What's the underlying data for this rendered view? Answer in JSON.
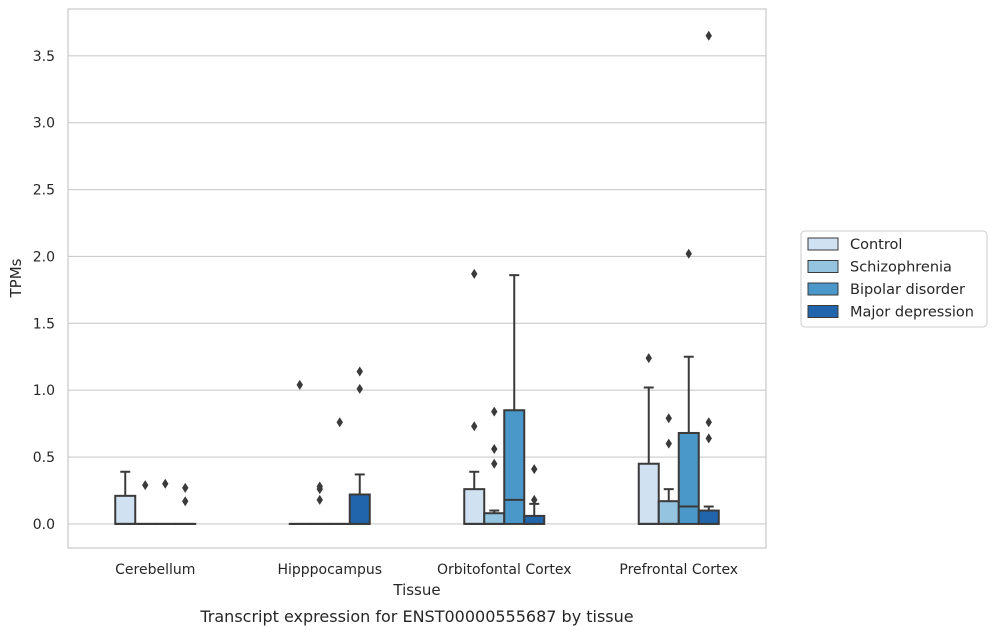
{
  "chart_data": {
    "type": "box",
    "xlabel": "Tissue",
    "ylabel": "TPMs",
    "caption": "Transcript expression for ENST00000555687 by tissue",
    "categories": [
      "Cerebellum",
      "Hipppocampus",
      "Orbitofontal Cortex",
      "Prefrontal Cortex"
    ],
    "ylim": [
      -0.18,
      3.85
    ],
    "yticks": [
      "0.0",
      "0.5",
      "1.0",
      "1.5",
      "2.0",
      "2.5",
      "3.0",
      "3.5"
    ],
    "grid": "horizontal",
    "legend_position": "right",
    "series": [
      {
        "name": "Control",
        "color": "#d0e1f2",
        "boxes": [
          {
            "q1": 0.0,
            "median": 0.0,
            "q3": 0.21,
            "whislo": 0.0,
            "whishi": 0.39,
            "fliers": []
          },
          {
            "q1": 0.0,
            "median": 0.0,
            "q3": 0.0,
            "whislo": 0.0,
            "whishi": 0.0,
            "fliers": [
              1.04
            ]
          },
          {
            "q1": 0.0,
            "median": 0.0,
            "q3": 0.26,
            "whislo": 0.0,
            "whishi": 0.39,
            "fliers": [
              0.73,
              1.87
            ]
          },
          {
            "q1": 0.0,
            "median": 0.0,
            "q3": 0.45,
            "whislo": 0.0,
            "whishi": 1.02,
            "fliers": [
              1.24
            ]
          }
        ]
      },
      {
        "name": "Schizophrenia",
        "color": "#94c4df",
        "boxes": [
          {
            "q1": 0.0,
            "median": 0.0,
            "q3": 0.0,
            "whislo": 0.0,
            "whishi": 0.0,
            "fliers": [
              0.29
            ]
          },
          {
            "q1": 0.0,
            "median": 0.0,
            "q3": 0.0,
            "whislo": 0.0,
            "whishi": 0.0,
            "fliers": [
              0.18,
              0.26,
              0.28
            ]
          },
          {
            "q1": 0.0,
            "median": 0.0,
            "q3": 0.08,
            "whislo": 0.0,
            "whishi": 0.1,
            "fliers": [
              0.45,
              0.56,
              0.84
            ]
          },
          {
            "q1": 0.0,
            "median": 0.0,
            "q3": 0.17,
            "whislo": 0.0,
            "whishi": 0.26,
            "fliers": [
              0.6,
              0.79
            ]
          }
        ]
      },
      {
        "name": "Bipolar disorder",
        "color": "#4a98c9",
        "boxes": [
          {
            "q1": 0.0,
            "median": 0.0,
            "q3": 0.0,
            "whislo": 0.0,
            "whishi": 0.0,
            "fliers": [
              0.3
            ]
          },
          {
            "q1": 0.0,
            "median": 0.0,
            "q3": 0.0,
            "whislo": 0.0,
            "whishi": 0.0,
            "fliers": [
              0.76
            ]
          },
          {
            "q1": 0.0,
            "median": 0.18,
            "q3": 0.85,
            "whislo": 0.0,
            "whishi": 1.86,
            "fliers": []
          },
          {
            "q1": 0.0,
            "median": 0.13,
            "q3": 0.68,
            "whislo": 0.0,
            "whishi": 1.25,
            "fliers": [
              2.02
            ]
          }
        ]
      },
      {
        "name": "Major depression",
        "color": "#2166ac",
        "boxes": [
          {
            "q1": 0.0,
            "median": 0.0,
            "q3": 0.0,
            "whislo": 0.0,
            "whishi": 0.0,
            "fliers": [
              0.17,
              0.27
            ]
          },
          {
            "q1": 0.0,
            "median": 0.0,
            "q3": 0.22,
            "whislo": 0.0,
            "whishi": 0.37,
            "fliers": [
              1.01,
              1.14
            ]
          },
          {
            "q1": 0.0,
            "median": 0.0,
            "q3": 0.06,
            "whislo": 0.0,
            "whishi": 0.15,
            "fliers": [
              0.18,
              0.41
            ]
          },
          {
            "q1": 0.0,
            "median": 0.0,
            "q3": 0.1,
            "whislo": 0.0,
            "whishi": 0.13,
            "fliers": [
              0.64,
              0.76,
              3.65
            ]
          }
        ]
      }
    ]
  }
}
